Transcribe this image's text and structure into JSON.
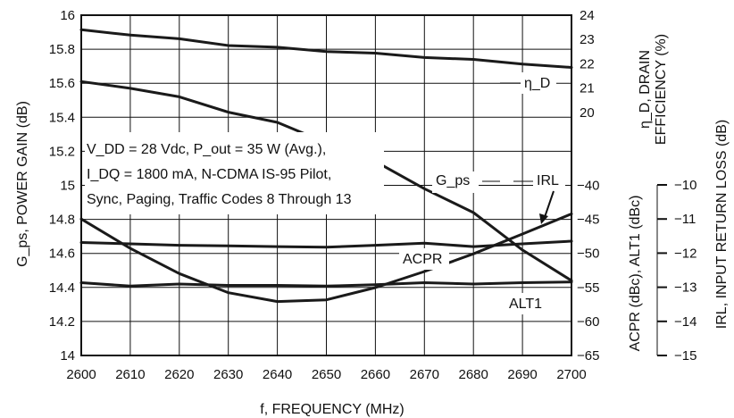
{
  "chart_data": {
    "type": "line",
    "xlabel": "f, FREQUENCY (MHz)",
    "x_ticks": [
      "2600",
      "2610",
      "2620",
      "2630",
      "2640",
      "2650",
      "2660",
      "2670",
      "2680",
      "2690",
      "2700"
    ],
    "xlim": [
      2600,
      2700
    ],
    "axes": {
      "left": {
        "label": "G_ps, POWER GAIN (dB)",
        "lim": [
          14,
          16
        ],
        "ticks": [
          "14",
          "14.2",
          "14.4",
          "14.6",
          "14.8",
          "15",
          "15.2",
          "15.4",
          "15.6",
          "15.8",
          "16"
        ]
      },
      "right_top": {
        "label_line1": "η_D, DRAIN",
        "label_line2": "EFFICIENCY (%)",
        "lim": [
          10,
          24
        ],
        "ticks": [
          "20",
          "21",
          "22",
          "23",
          "24"
        ]
      },
      "right_mid": {
        "label": "ACPR (dBc), ALT1 (dBc)",
        "lim": [
          -65,
          -15
        ],
        "ticks": [
          "-65",
          "-60",
          "-55",
          "-50",
          "-45",
          "-40"
        ]
      },
      "right_far": {
        "label": "IRL, INPUT RETURN LOSS (dB)",
        "lim": [
          -15,
          -10
        ],
        "ticks": [
          "-10",
          "-11",
          "-12",
          "-13",
          "-14",
          "-15"
        ]
      }
    },
    "annotation_lines": [
      "V_DD = 28 Vdc, P_out = 35 W (Avg.),",
      "I_DQ = 1800 mA, N-CDMA IS-95 Pilot,",
      "Sync, Paging, Traffic Codes 8 Through 13"
    ],
    "series": [
      {
        "name": "η_D",
        "axis": "right_top",
        "x": [
          2600,
          2610,
          2620,
          2630,
          2640,
          2650,
          2660,
          2670,
          2680,
          2690,
          2700
        ],
        "values": [
          23.4,
          23.18,
          23.03,
          22.75,
          22.68,
          22.5,
          22.44,
          22.26,
          22.18,
          21.99,
          21.85
        ]
      },
      {
        "name": "G_ps",
        "axis": "left",
        "x": [
          2600,
          2610,
          2620,
          2630,
          2640,
          2650,
          2660,
          2670,
          2680,
          2690,
          2700
        ],
        "values": [
          15.61,
          15.57,
          15.52,
          15.43,
          15.37,
          15.25,
          15.14,
          14.98,
          14.84,
          14.62,
          14.44
        ]
      },
      {
        "name": "IRL",
        "axis": "right_far",
        "x": [
          2600,
          2610,
          2620,
          2630,
          2640,
          2650,
          2660,
          2670,
          2680,
          2690,
          2700
        ],
        "values": [
          -11.0,
          -11.86,
          -12.6,
          -13.16,
          -13.42,
          -13.37,
          -13.01,
          -12.54,
          -12.02,
          -11.44,
          -10.85
        ]
      },
      {
        "name": "ACPR",
        "axis": "right_mid",
        "x": [
          2600,
          2610,
          2620,
          2630,
          2640,
          2650,
          2660,
          2670,
          2680,
          2690,
          2700
        ],
        "values": [
          -48.4,
          -48.6,
          -48.8,
          -48.9,
          -49.0,
          -49.1,
          -48.8,
          -48.5,
          -49.0,
          -48.6,
          -48.2
        ]
      },
      {
        "name": "ALT1",
        "axis": "right_mid",
        "x": [
          2600,
          2610,
          2620,
          2630,
          2640,
          2650,
          2660,
          2670,
          2680,
          2690,
          2700
        ],
        "values": [
          -54.3,
          -54.8,
          -54.5,
          -54.7,
          -54.7,
          -54.8,
          -54.6,
          -54.3,
          -54.5,
          -54.3,
          -54.2
        ]
      }
    ],
    "series_labels": {
      "eff": "η_D",
      "gain": "G_ps",
      "irl": "IRL",
      "acpr": "ACPR",
      "alt1": "ALT1"
    }
  }
}
